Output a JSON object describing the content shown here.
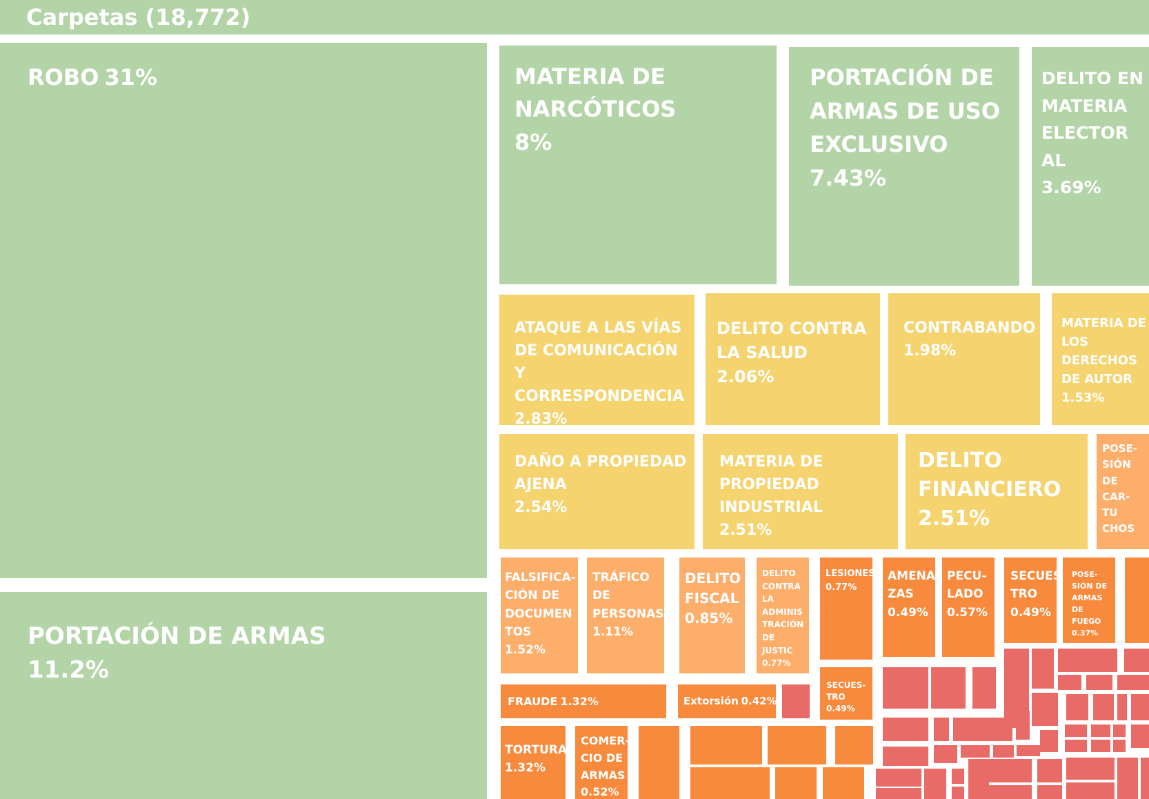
{
  "chart_data": {
    "type": "treemap",
    "title": "Carpetas (18,772)",
    "colors": {
      "green": "#b2d4a6",
      "yellow": "#f5d36e",
      "light_orange": "#fdae6b",
      "orange": "#f78a3d",
      "red": "#e96b68"
    },
    "items": [
      {
        "label": "ROBO",
        "value": "31%",
        "percent": 31,
        "color": "green"
      },
      {
        "label": "PORTACIÓN DE ARMAS",
        "value": "11.2%",
        "percent": 11.2,
        "color": "green"
      },
      {
        "label": "MATERIA DE NARCÓTICOS",
        "value": "8%",
        "percent": 8,
        "color": "green"
      },
      {
        "label": "PORTACIÓN DE ARMAS DE USO EXCLUSIVO",
        "value": "7.43%",
        "percent": 7.43,
        "color": "green"
      },
      {
        "label": "DELITO EN MATERIA ELECTOR AL",
        "value": "3.69%",
        "percent": 3.69,
        "color": "green"
      },
      {
        "label": "ATAQUE A LAS VÍAS DE COMUNICACIÓN Y CORRESPONDENCIA",
        "value": "2.83%",
        "percent": 2.83,
        "color": "yellow"
      },
      {
        "label": "DELITO CONTRA LA SALUD",
        "value": "2.06%",
        "percent": 2.06,
        "color": "yellow"
      },
      {
        "label": "CONTRABANDO",
        "value": "1.98%",
        "percent": 1.98,
        "color": "yellow"
      },
      {
        "label": "MATERIA DE LOS DERECHOS DE AUTOR",
        "value": "1.53%",
        "percent": 1.53,
        "color": "yellow"
      },
      {
        "label": "DAÑO A PROPIEDAD AJENA",
        "value": "2.54%",
        "percent": 2.54,
        "color": "yellow"
      },
      {
        "label": "MATERIA DE PROPIEDAD INDUSTRIAL",
        "value": "2.51%",
        "percent": 2.51,
        "color": "yellow"
      },
      {
        "label": "DELITO FINANCIERO",
        "value": "2.51%",
        "percent": 2.51,
        "color": "yellow"
      },
      {
        "label": "POSE- SIÓN DE CAR- TU CHOS",
        "value": "",
        "percent": null,
        "color": "light_orange"
      },
      {
        "label": "FALSIFICA- CIÓN DE DOCUMEN TOS",
        "value": "1.52%",
        "percent": 1.52,
        "color": "light_orange"
      },
      {
        "label": "TRÁFICO DE PERSONAS",
        "value": "1.11%",
        "percent": 1.11,
        "color": "light_orange"
      },
      {
        "label": "DELITO FISCAL",
        "value": "0.85%",
        "percent": 0.85,
        "color": "light_orange"
      },
      {
        "label": "DELITO CONTRA LA ADMINIS TRACIÓN DE JUSTIC",
        "value": "0.77%",
        "percent": 0.77,
        "color": "light_orange"
      },
      {
        "label": "LESIONES",
        "value": "0.77%",
        "percent": 0.77,
        "color": "orange"
      },
      {
        "label": "AMENA ZAS",
        "value": "0.49%",
        "percent": 0.49,
        "color": "orange"
      },
      {
        "label": "PECU- LADO",
        "value": "0.57%",
        "percent": 0.57,
        "color": "orange"
      },
      {
        "label": "SECUES- TRO",
        "value": "0.49%",
        "percent": 0.49,
        "color": "orange"
      },
      {
        "label": "POSE- SIÓN DE ARMAS DE FUEGO",
        "value": "0.37%",
        "percent": 0.37,
        "color": "orange"
      },
      {
        "label": "SECUES- TRO",
        "value": "0.49%",
        "percent": 0.49,
        "color": "orange"
      },
      {
        "label": "FRAUDE",
        "value": "1.32%",
        "percent": 1.32,
        "color": "orange"
      },
      {
        "label": "Extorsión",
        "value": "0.42%",
        "percent": 0.42,
        "color": "orange"
      },
      {
        "label": "TORTURA",
        "value": "1.32%",
        "percent": 1.32,
        "color": "orange"
      },
      {
        "label": "COMER- CIO DE ARMAS",
        "value": "0.52%",
        "percent": 0.52,
        "color": "orange"
      }
    ]
  }
}
